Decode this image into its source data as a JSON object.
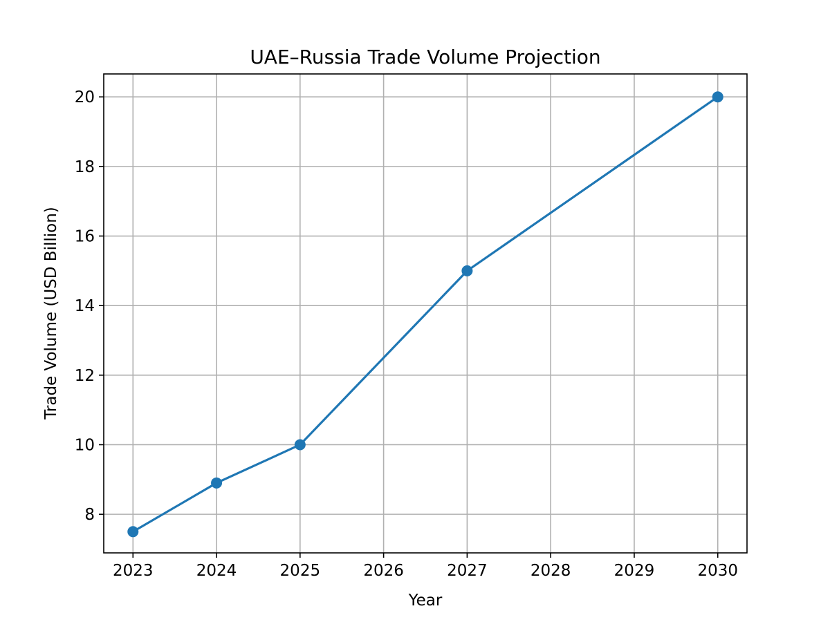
{
  "chart_data": {
    "type": "line",
    "title": "UAE–Russia Trade Volume Projection",
    "xlabel": "Year",
    "ylabel": "Trade Volume (USD Billion)",
    "x": [
      2023,
      2024,
      2025,
      2027,
      2030
    ],
    "values": [
      7.5,
      8.9,
      10,
      15,
      20
    ],
    "xticks": [
      2023,
      2024,
      2025,
      2026,
      2027,
      2028,
      2029,
      2030
    ],
    "yticks": [
      8,
      10,
      12,
      14,
      16,
      18,
      20
    ],
    "xlim": [
      2022.65,
      2030.35
    ],
    "ylim": [
      6.89,
      20.66
    ],
    "grid": true,
    "marker": "circle",
    "color": "#1f77b4"
  }
}
